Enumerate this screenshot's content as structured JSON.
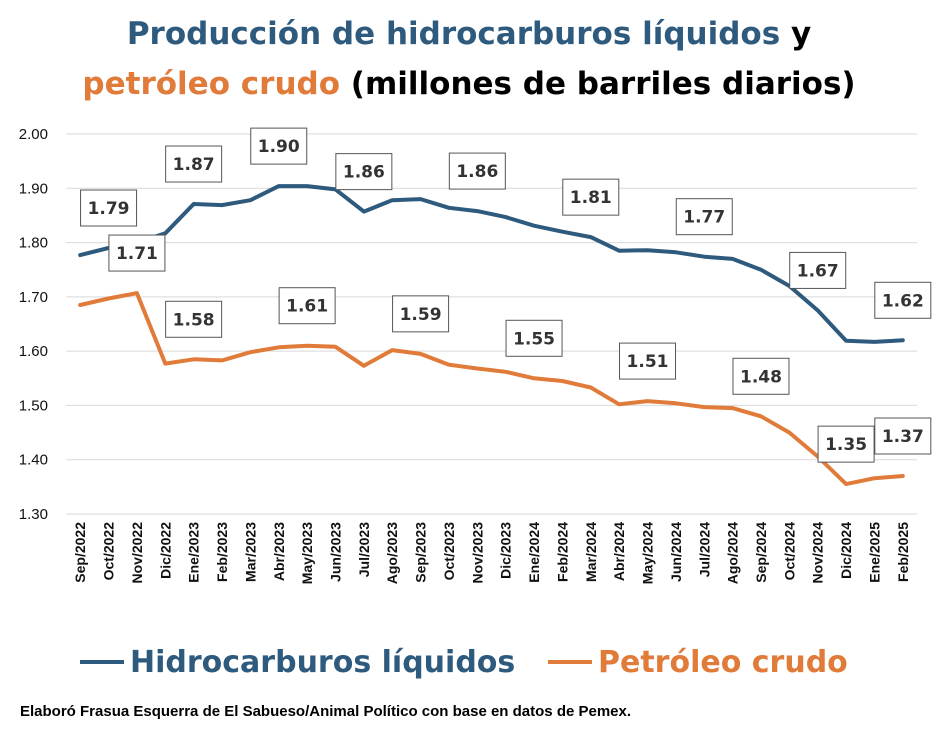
{
  "title": {
    "line1_part1": "Producción de hidrocarburos líquidos",
    "line1_part2": " y",
    "line2_part1": "petróleo crudo",
    "line2_part2": " (millones de barriles diarios)"
  },
  "footer": "Elaboró Frasua Esquerra de El Sabueso/Animal Político con base en datos de Pemex.",
  "colors": {
    "hidrocarburos": "#2e5a7e",
    "petroleo": "#e07b39",
    "grid": "#d9d9d9"
  },
  "chart_data": {
    "type": "line",
    "title": "Producción de hidrocarburos líquidos y petróleo crudo (millones de barriles diarios)",
    "ylim": [
      1.3,
      2.0
    ],
    "yticks": [
      "1.30",
      "1.40",
      "1.50",
      "1.60",
      "1.70",
      "1.80",
      "1.90",
      "2.00"
    ],
    "grid": true,
    "legend_position": "bottom",
    "categories": [
      "Sep/2022",
      "Oct/2022",
      "Nov/2022",
      "Dic/2022",
      "Ene/2023",
      "Feb/2023",
      "Mar/2023",
      "Abr/2023",
      "May/2023",
      "Jun/2023",
      "Jul/2023",
      "Ago/2023",
      "Sep/2023",
      "Oct/2023",
      "Nov/2023",
      "Dic/2023",
      "Ene/2024",
      "Feb/2024",
      "Mar/2024",
      "Abr/2024",
      "May/2024",
      "Jun/2024",
      "Jul/2024",
      "Ago/2024",
      "Sep/2024",
      "Oct/2024",
      "Nov/2024",
      "Dic/2024",
      "Ene/2025",
      "Feb/2025"
    ],
    "series": [
      {
        "name": "Hidrocarburos líquidos",
        "values": [
          1.777,
          1.79,
          1.8,
          1.817,
          1.871,
          1.869,
          1.878,
          1.904,
          1.904,
          1.898,
          1.857,
          1.878,
          1.88,
          1.864,
          1.858,
          1.847,
          1.831,
          1.82,
          1.81,
          1.785,
          1.786,
          1.782,
          1.774,
          1.77,
          1.75,
          1.72,
          1.675,
          1.619,
          1.617,
          1.62
        ],
        "labels": [
          null,
          "1.79",
          null,
          null,
          "1.87",
          null,
          null,
          "1.90",
          null,
          null,
          "1.86",
          null,
          null,
          null,
          "1.86",
          null,
          null,
          null,
          "1.81",
          null,
          null,
          null,
          "1.77",
          null,
          null,
          null,
          "1.67",
          null,
          null,
          "1.62"
        ]
      },
      {
        "name": "Petróleo crudo",
        "values": [
          1.685,
          1.697,
          1.707,
          1.577,
          1.585,
          1.583,
          1.598,
          1.607,
          1.61,
          1.608,
          1.573,
          1.602,
          1.595,
          1.575,
          1.568,
          1.562,
          1.55,
          1.545,
          1.533,
          1.502,
          1.508,
          1.504,
          1.497,
          1.495,
          1.48,
          1.45,
          1.406,
          1.355,
          1.366,
          1.37
        ],
        "labels": [
          null,
          null,
          "1.71",
          null,
          "1.58",
          null,
          null,
          null,
          "1.61",
          null,
          null,
          null,
          "1.59",
          null,
          null,
          null,
          "1.55",
          null,
          null,
          null,
          "1.51",
          null,
          null,
          null,
          "1.48",
          null,
          null,
          "1.35",
          null,
          "1.37"
        ]
      }
    ]
  },
  "legend": {
    "item1": "Hidrocarburos líquidos",
    "item2": "Petróleo crudo"
  }
}
